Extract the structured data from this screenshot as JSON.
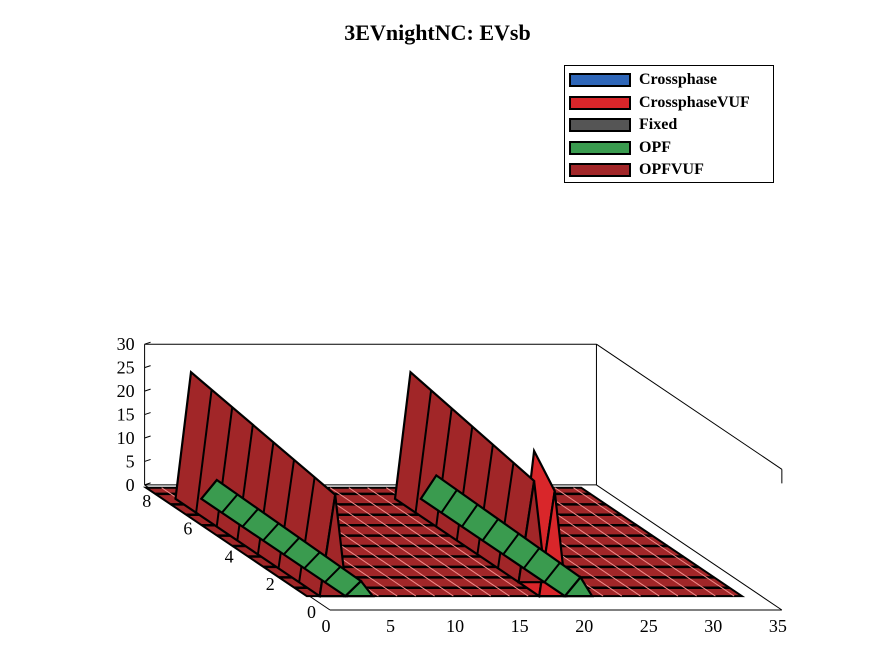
{
  "chart_data": {
    "type": "bar3d",
    "title": "3EVnightNC: EVsb",
    "xlabel": "",
    "ylabel": "",
    "zlabel": "",
    "xlim": [
      0,
      35
    ],
    "ylim": [
      0,
      9
    ],
    "zlim": [
      0,
      30
    ],
    "x_ticks": [
      "0",
      "5",
      "10",
      "15",
      "20",
      "25",
      "30",
      "35"
    ],
    "y_ticks": [
      "0",
      "2",
      "4",
      "6",
      "8"
    ],
    "z_ticks": [
      "0",
      "5",
      "10",
      "15",
      "20",
      "25",
      "30"
    ],
    "legend_position": "top-right",
    "series": [
      {
        "name": "Crossphase",
        "color": "#2e66b8"
      },
      {
        "name": "CrossphaseVUF",
        "color": "#d9262a"
      },
      {
        "name": "Fixed",
        "color": "#555555"
      },
      {
        "name": "OPF",
        "color": "#3a9b4f"
      },
      {
        "name": "OPFVUF",
        "color": "#a12628"
      }
    ],
    "peaks": [
      {
        "series": "OPFVUF",
        "x": 2,
        "value": 27,
        "y_range": [
          1,
          8
        ]
      },
      {
        "series": "OPF",
        "x": 4,
        "value": 4,
        "y_range": [
          1,
          8
        ]
      },
      {
        "series": "CrossphaseVUF",
        "x": 19,
        "value": 28,
        "y_range": [
          1,
          2
        ]
      },
      {
        "series": "OPFVUF",
        "x": 19,
        "value": 27,
        "y_range": [
          2,
          8
        ]
      },
      {
        "series": "OPF",
        "x": 21,
        "value": 5,
        "y_range": [
          1,
          8
        ]
      }
    ]
  }
}
